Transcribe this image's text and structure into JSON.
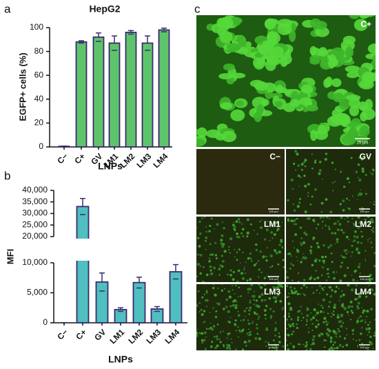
{
  "chart_data": [
    {
      "type": "bar",
      "panel_label": "a",
      "title": "HepG2",
      "ylabel": "EGFP+ cells (%)",
      "xlabel": "LNPs",
      "categories": [
        "C−",
        "C+",
        "GV",
        "LM1",
        "LM2",
        "LM3",
        "LM4"
      ],
      "values": [
        0.5,
        88,
        92,
        87,
        96,
        87,
        98
      ],
      "errors": [
        0.2,
        1,
        3.5,
        6,
        1.5,
        6,
        1.5
      ],
      "color": "#5ec46c",
      "edgecolor": "#3b2a6e",
      "ylim": [
        0,
        100
      ],
      "yticks": [
        0,
        20,
        40,
        60,
        80,
        100
      ]
    },
    {
      "type": "bar",
      "panel_label": "b",
      "ylabel": "MFI",
      "xlabel": "LNPs",
      "categories": [
        "C−",
        "C+",
        "GV",
        "LM1",
        "LM2",
        "LM3",
        "LM4"
      ],
      "values": [
        0,
        33000,
        6800,
        2200,
        6700,
        2300,
        8500
      ],
      "errors": [
        0,
        3500,
        1500,
        300,
        900,
        400,
        1200
      ],
      "color": "#4fbfbf",
      "edgecolor": "#3b2a6e",
      "ylim": [
        0,
        40000
      ],
      "ybreak": [
        10000,
        20000
      ],
      "yticks": [
        0,
        {
          "value": 5000,
          "label": "5,000"
        },
        {
          "value": 10000,
          "label": "10,000"
        },
        {
          "value": 20000,
          "label": "20,000"
        },
        {
          "value": 25000,
          "label": "25,000"
        },
        {
          "value": 30000,
          "label": "30,000"
        },
        {
          "value": 35000,
          "label": "35,000"
        },
        {
          "value": 40000,
          "label": "40,000"
        }
      ]
    }
  ],
  "panel_c": {
    "label": "c",
    "images": [
      {
        "label": "C+",
        "scale": "25 µm"
      },
      {
        "label": "C−",
        "scale": "100 µm"
      },
      {
        "label": "GV",
        "scale": "100 µm"
      },
      {
        "label": "LM1",
        "scale": "100 µm"
      },
      {
        "label": "LM2",
        "scale": "100 µm"
      },
      {
        "label": "LM3",
        "scale": "100 µm"
      },
      {
        "label": "LM4",
        "scale": "100 µm"
      }
    ]
  }
}
